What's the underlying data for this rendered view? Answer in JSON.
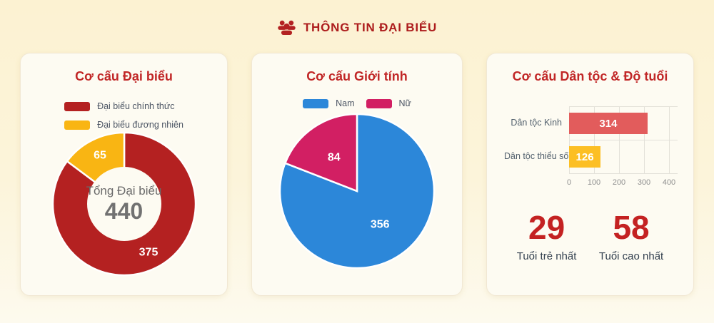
{
  "header": {
    "title": "THÔNG TIN ĐẠI BIỂU"
  },
  "colors": {
    "header_red": "#ad1d1d",
    "card_title_red": "#c12727",
    "stat_red": "#c42222",
    "background_cream": "#fcf2d2",
    "card_background": "#fdfbf2"
  },
  "stats": {
    "youngest": {
      "value": "29",
      "label": "Tuổi trẻ nhất"
    },
    "oldest": {
      "value": "58",
      "label": "Tuổi cao nhất"
    }
  },
  "chart_data": [
    {
      "type": "donut",
      "title": "Cơ cấu Đại biểu",
      "labels": [
        "Đại biểu chính thức",
        "Đại biểu đương nhiên"
      ],
      "values": [
        375,
        65
      ],
      "colors": [
        "#b42121",
        "#f9b513"
      ],
      "center_label": "Tổng Đại biểu",
      "center_value": "440",
      "legend_position": "top",
      "start_angle": "top-clockwise"
    },
    {
      "type": "pie",
      "title": "Cơ cấu Giới tính",
      "labels": [
        "Nam",
        "Nữ"
      ],
      "values": [
        356,
        84
      ],
      "colors": [
        "#2c87d9",
        "#d21f63"
      ],
      "legend_position": "top",
      "start_angle": "top-clockwise"
    },
    {
      "type": "bar",
      "orientation": "horizontal",
      "title": "Cơ cấu Dân tộc & Độ tuổi",
      "categories": [
        "Dân tộc Kinh",
        "Dân tộc thiểu số"
      ],
      "values": [
        314,
        126
      ],
      "colors": [
        "#e25c5c",
        "#fcbf24"
      ],
      "xlim": [
        0,
        400
      ],
      "xticks": [
        0,
        100,
        200,
        300,
        400
      ],
      "grid": true
    }
  ]
}
